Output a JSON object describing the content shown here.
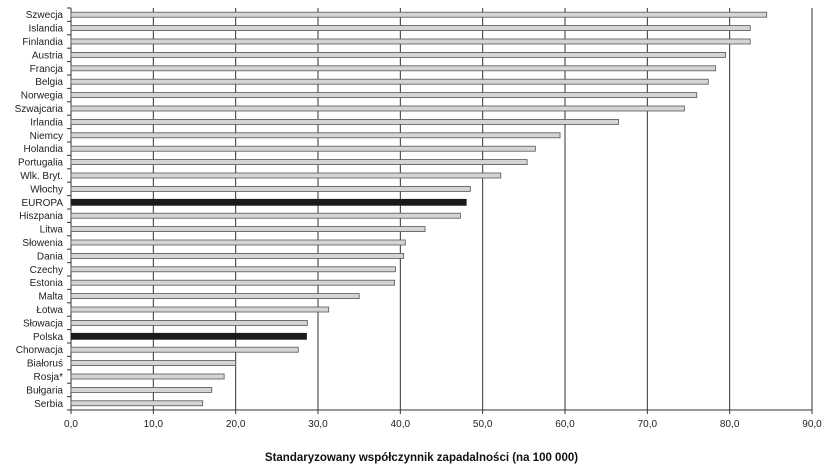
{
  "chart_data": {
    "type": "bar",
    "orientation": "horizontal",
    "title": "",
    "xlabel": "Standaryzowany współczynnik zapadalności (na 100 000)",
    "ylabel": "",
    "xlim": [
      0,
      90
    ],
    "x_ticks": [
      0,
      10,
      20,
      30,
      40,
      50,
      60,
      70,
      80,
      90
    ],
    "x_tick_labels": [
      "0,0",
      "10,0",
      "20,0",
      "30,0",
      "40,0",
      "50,0",
      "60,0",
      "70,0",
      "80,0",
      "90,0"
    ],
    "grid": "vertical",
    "categories": [
      "Szwecja",
      "Islandia",
      "Finlandia",
      "Austria",
      "Francja",
      "Belgia",
      "Norwegia",
      "Szwajcaria",
      "Irlandia",
      "Niemcy",
      "Holandia",
      "Portugalia",
      "Wlk. Bryt.",
      "Włochy",
      "EUROPA",
      "Hiszpania",
      "Litwa",
      "Słowenia",
      "Dania",
      "Czechy",
      "Estonia",
      "Malta",
      "Łotwa",
      "Słowacja",
      "Polska",
      "Chorwacja",
      "Białoruś",
      "Rosja*",
      "Bułgaria",
      "Serbia"
    ],
    "values": [
      84.5,
      82.5,
      82.5,
      79.5,
      78.3,
      77.4,
      76.0,
      74.5,
      66.5,
      59.4,
      56.4,
      55.4,
      52.2,
      48.5,
      48.0,
      47.3,
      43.0,
      40.6,
      40.4,
      39.4,
      39.3,
      35.0,
      31.3,
      28.7,
      28.6,
      27.6,
      20.0,
      18.6,
      17.1,
      16.0
    ],
    "highlighted": [
      "EUROPA",
      "Polska"
    ],
    "colors": {
      "bar": "#d4d4d4",
      "bar_stroke": "#555555",
      "highlight": "#1a1a1a",
      "grid": "#333333"
    }
  }
}
